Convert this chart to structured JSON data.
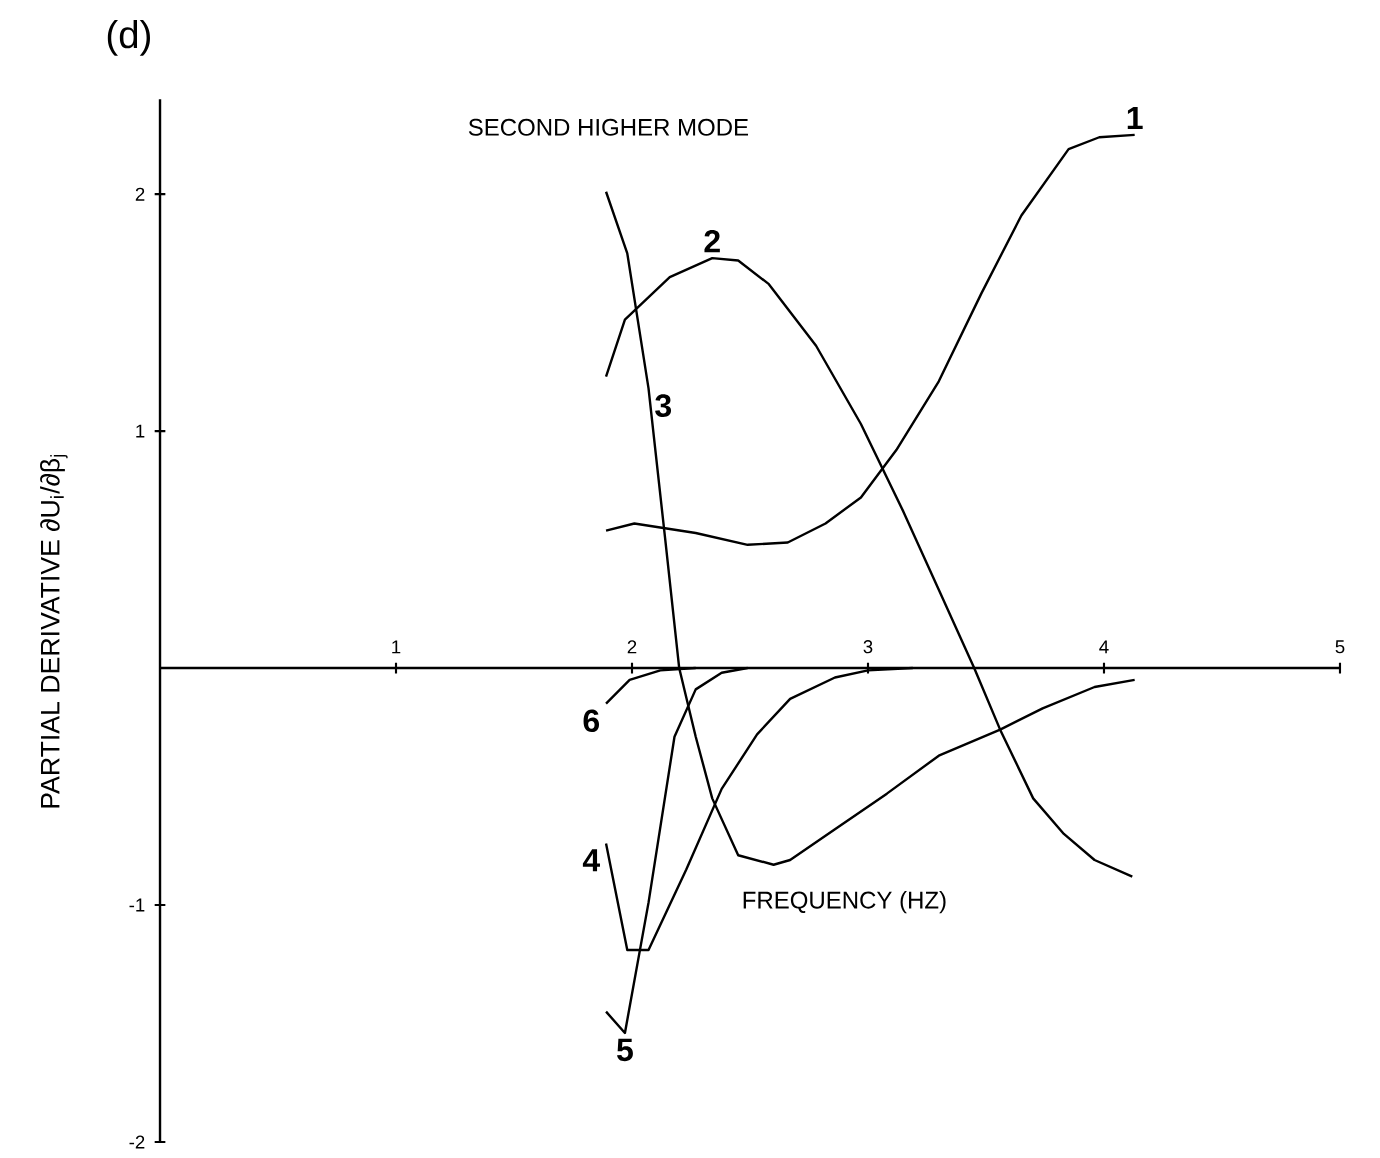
{
  "chart_data": {
    "type": "line",
    "title": "SECOND HIGHER MODE",
    "xlabel": "FREQUENCY (HZ)",
    "ylabel": "PARTIAL DERIVATIVE  ∂U$_{i}$/∂β$_{j}$",
    "xlim": [
      0,
      5
    ],
    "ylim": [
      -2,
      2.4
    ],
    "xticks": [
      1,
      2,
      3,
      4,
      5
    ],
    "yticks": [
      -2,
      -1,
      1,
      2
    ],
    "line_style": "solid",
    "series": [
      {
        "name": "1",
        "color": "#000000",
        "x": [
          1.89,
          2.01,
          2.27,
          2.49,
          2.66,
          2.82,
          2.97,
          3.12,
          3.3,
          3.48,
          3.65,
          3.85,
          3.98,
          4.13
        ],
        "values": [
          0.58,
          0.61,
          0.57,
          0.52,
          0.53,
          0.61,
          0.72,
          0.92,
          1.21,
          1.58,
          1.91,
          2.19,
          2.24,
          2.25
        ]
      },
      {
        "name": "2",
        "color": "#000000",
        "x": [
          1.89,
          1.97,
          2.16,
          2.34,
          2.45,
          2.58,
          2.78,
          2.97,
          3.15,
          3.3,
          3.45,
          3.56,
          3.7,
          3.83,
          3.96,
          4.12
        ],
        "values": [
          1.23,
          1.47,
          1.65,
          1.73,
          1.72,
          1.62,
          1.36,
          1.03,
          0.66,
          0.33,
          0.0,
          -0.26,
          -0.55,
          -0.7,
          -0.81,
          -0.88
        ]
      },
      {
        "name": "3",
        "color": "#000000",
        "x": [
          1.89,
          1.98,
          2.07,
          2.14,
          2.2,
          2.27,
          2.34,
          2.45,
          2.6,
          2.67,
          2.86,
          3.08,
          3.3,
          3.56,
          3.74,
          3.96,
          4.13
        ],
        "values": [
          2.01,
          1.75,
          1.18,
          0.55,
          0.0,
          -0.29,
          -0.55,
          -0.79,
          -0.83,
          -0.81,
          -0.68,
          -0.53,
          -0.37,
          -0.26,
          -0.17,
          -0.08,
          -0.05
        ]
      },
      {
        "name": "4",
        "color": "#000000",
        "x": [
          1.89,
          1.98,
          2.07,
          2.23,
          2.38,
          2.53,
          2.67,
          2.86,
          3.0,
          3.19
        ],
        "values": [
          -0.74,
          -1.19,
          -1.19,
          -0.85,
          -0.51,
          -0.28,
          -0.13,
          -0.04,
          -0.01,
          0.0
        ]
      },
      {
        "name": "5",
        "color": "#000000",
        "x": [
          1.89,
          1.97,
          2.07,
          2.18,
          2.27,
          2.38,
          2.49
        ],
        "values": [
          -1.45,
          -1.54,
          -0.99,
          -0.29,
          -0.09,
          -0.02,
          0.0
        ]
      },
      {
        "name": "6",
        "color": "#000000",
        "x": [
          1.89,
          1.99,
          2.12,
          2.27
        ],
        "values": [
          -0.15,
          -0.05,
          -0.01,
          0.0
        ]
      }
    ],
    "annotations": [
      "(d)"
    ]
  }
}
